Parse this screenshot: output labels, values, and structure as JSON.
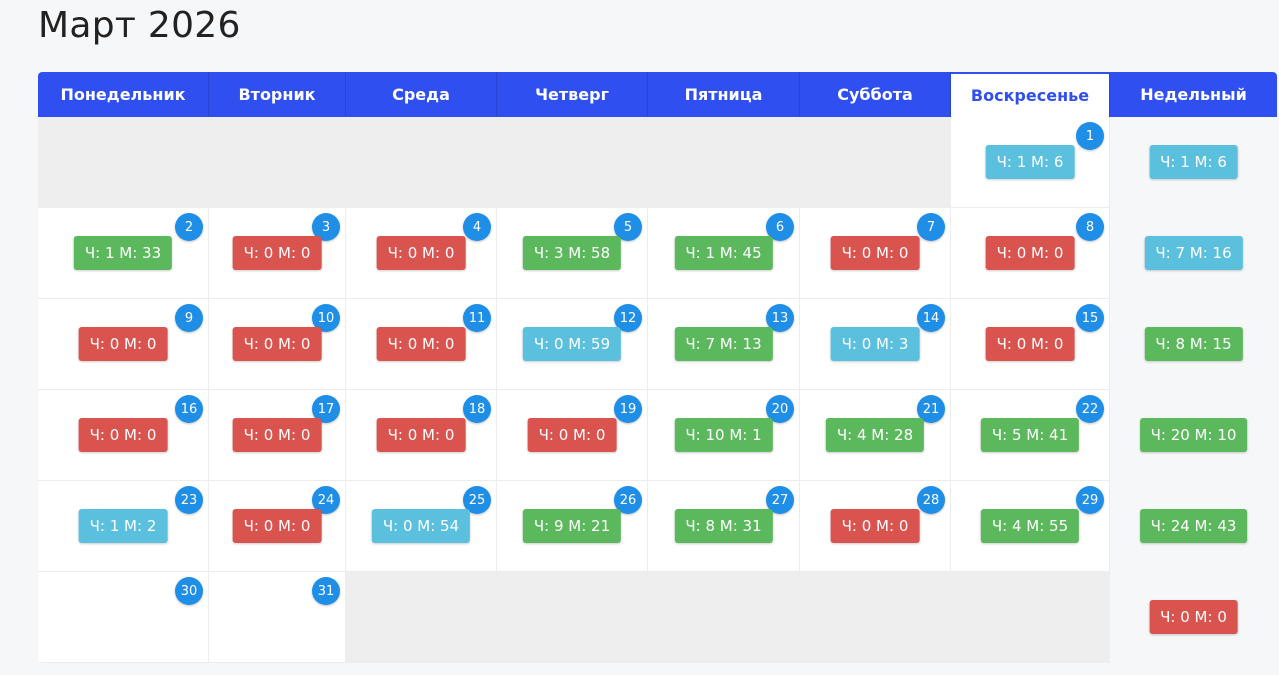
{
  "page": {
    "title": "Март 2026"
  },
  "colors": {
    "header": "#2f4ff1",
    "badge": "#1e8ee6",
    "green": "#5cb85c",
    "red": "#d9534f",
    "blue": "#5bc0de"
  },
  "headers": [
    "Понедельник",
    "Вторник",
    "Среда",
    "Четверг",
    "Пятница",
    "Суббота",
    "Воскресенье",
    "Недельный"
  ],
  "weeks": [
    {
      "days": [
        null,
        null,
        null,
        null,
        null,
        null,
        {
          "day": "1",
          "label": "Ч: 1 М: 6",
          "status": "blue"
        }
      ],
      "weekly": {
        "label": "Ч: 1 М: 6",
        "status": "blue"
      }
    },
    {
      "days": [
        {
          "day": "2",
          "label": "Ч: 1 М: 33",
          "status": "green"
        },
        {
          "day": "3",
          "label": "Ч: 0 М: 0",
          "status": "red"
        },
        {
          "day": "4",
          "label": "Ч: 0 М: 0",
          "status": "red"
        },
        {
          "day": "5",
          "label": "Ч: 3 М: 58",
          "status": "green"
        },
        {
          "day": "6",
          "label": "Ч: 1 М: 45",
          "status": "green"
        },
        {
          "day": "7",
          "label": "Ч: 0 М: 0",
          "status": "red"
        },
        {
          "day": "8",
          "label": "Ч: 0 М: 0",
          "status": "red"
        }
      ],
      "weekly": {
        "label": "Ч: 7 М: 16",
        "status": "blue"
      }
    },
    {
      "days": [
        {
          "day": "9",
          "label": "Ч: 0 М: 0",
          "status": "red"
        },
        {
          "day": "10",
          "label": "Ч: 0 М: 0",
          "status": "red"
        },
        {
          "day": "11",
          "label": "Ч: 0 М: 0",
          "status": "red"
        },
        {
          "day": "12",
          "label": "Ч: 0 М: 59",
          "status": "blue"
        },
        {
          "day": "13",
          "label": "Ч: 7 М: 13",
          "status": "green"
        },
        {
          "day": "14",
          "label": "Ч: 0 М: 3",
          "status": "blue"
        },
        {
          "day": "15",
          "label": "Ч: 0 М: 0",
          "status": "red"
        }
      ],
      "weekly": {
        "label": "Ч: 8 М: 15",
        "status": "green"
      }
    },
    {
      "days": [
        {
          "day": "16",
          "label": "Ч: 0 М: 0",
          "status": "red"
        },
        {
          "day": "17",
          "label": "Ч: 0 М: 0",
          "status": "red"
        },
        {
          "day": "18",
          "label": "Ч: 0 М: 0",
          "status": "red"
        },
        {
          "day": "19",
          "label": "Ч: 0 М: 0",
          "status": "red"
        },
        {
          "day": "20",
          "label": "Ч: 10 М: 1",
          "status": "green"
        },
        {
          "day": "21",
          "label": "Ч: 4 М: 28",
          "status": "green"
        },
        {
          "day": "22",
          "label": "Ч: 5 М: 41",
          "status": "green"
        }
      ],
      "weekly": {
        "label": "Ч: 20 М: 10",
        "status": "green"
      }
    },
    {
      "days": [
        {
          "day": "23",
          "label": "Ч: 1 М: 2",
          "status": "blue"
        },
        {
          "day": "24",
          "label": "Ч: 0 М: 0",
          "status": "red"
        },
        {
          "day": "25",
          "label": "Ч: 0 М: 54",
          "status": "blue"
        },
        {
          "day": "26",
          "label": "Ч: 9 М: 21",
          "status": "green"
        },
        {
          "day": "27",
          "label": "Ч: 8 М: 31",
          "status": "green"
        },
        {
          "day": "28",
          "label": "Ч: 0 М: 0",
          "status": "red"
        },
        {
          "day": "29",
          "label": "Ч: 4 М: 55",
          "status": "green"
        }
      ],
      "weekly": {
        "label": "Ч: 24 М: 43",
        "status": "green"
      }
    },
    {
      "days": [
        {
          "day": "30",
          "label": null,
          "status": null
        },
        {
          "day": "31",
          "label": null,
          "status": null
        },
        null,
        null,
        null,
        null,
        null
      ],
      "weekly": {
        "label": "Ч: 0 М: 0",
        "status": "red"
      }
    }
  ]
}
